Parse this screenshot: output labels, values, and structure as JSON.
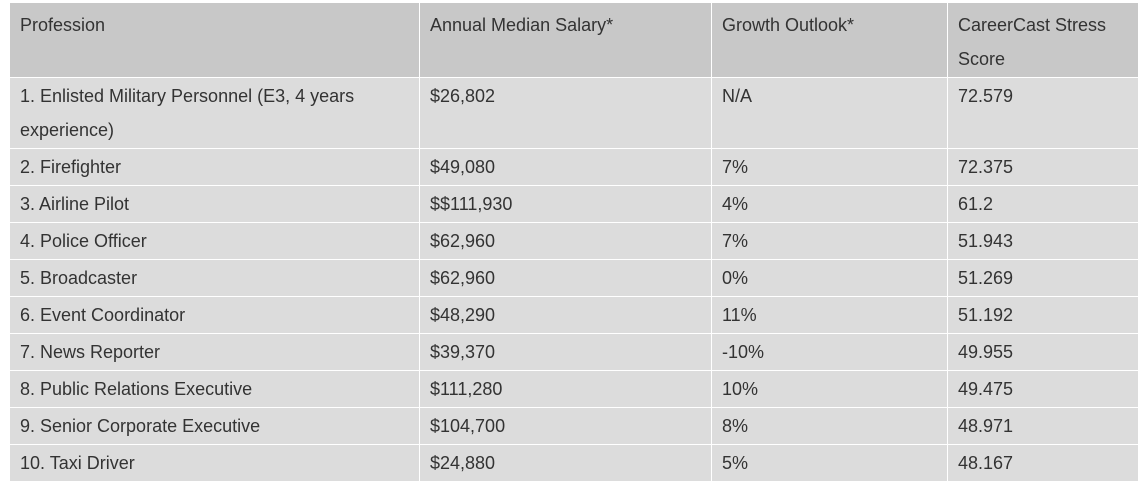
{
  "table": {
    "headers": [
      "Profession",
      "Annual Median Salary*",
      "Growth Outlook*",
      "CareerCast Stress Score"
    ],
    "rows": [
      [
        "1. Enlisted Military Personnel (E3, 4 years experience)",
        "$26,802",
        "N/A",
        "72.579"
      ],
      [
        "2. Firefighter",
        "$49,080",
        "7%",
        "72.375"
      ],
      [
        "3. Airline Pilot",
        "$$111,930",
        "4%",
        "61.2"
      ],
      [
        "4. Police Officer",
        "$62,960",
        "7%",
        "51.943"
      ],
      [
        "5. Broadcaster",
        "$62,960",
        "0%",
        "51.269"
      ],
      [
        "6. Event Coordinator",
        "$48,290",
        "11%",
        "51.192"
      ],
      [
        "7. News Reporter",
        "$39,370",
        "-10%",
        "49.955"
      ],
      [
        "8. Public Relations Executive",
        "$111,280",
        "10%",
        "49.475"
      ],
      [
        "9. Senior Corporate Executive",
        "$104,700",
        "8%",
        "48.971"
      ],
      [
        "10. Taxi Driver",
        "$24,880",
        "5%",
        "48.167"
      ]
    ]
  }
}
